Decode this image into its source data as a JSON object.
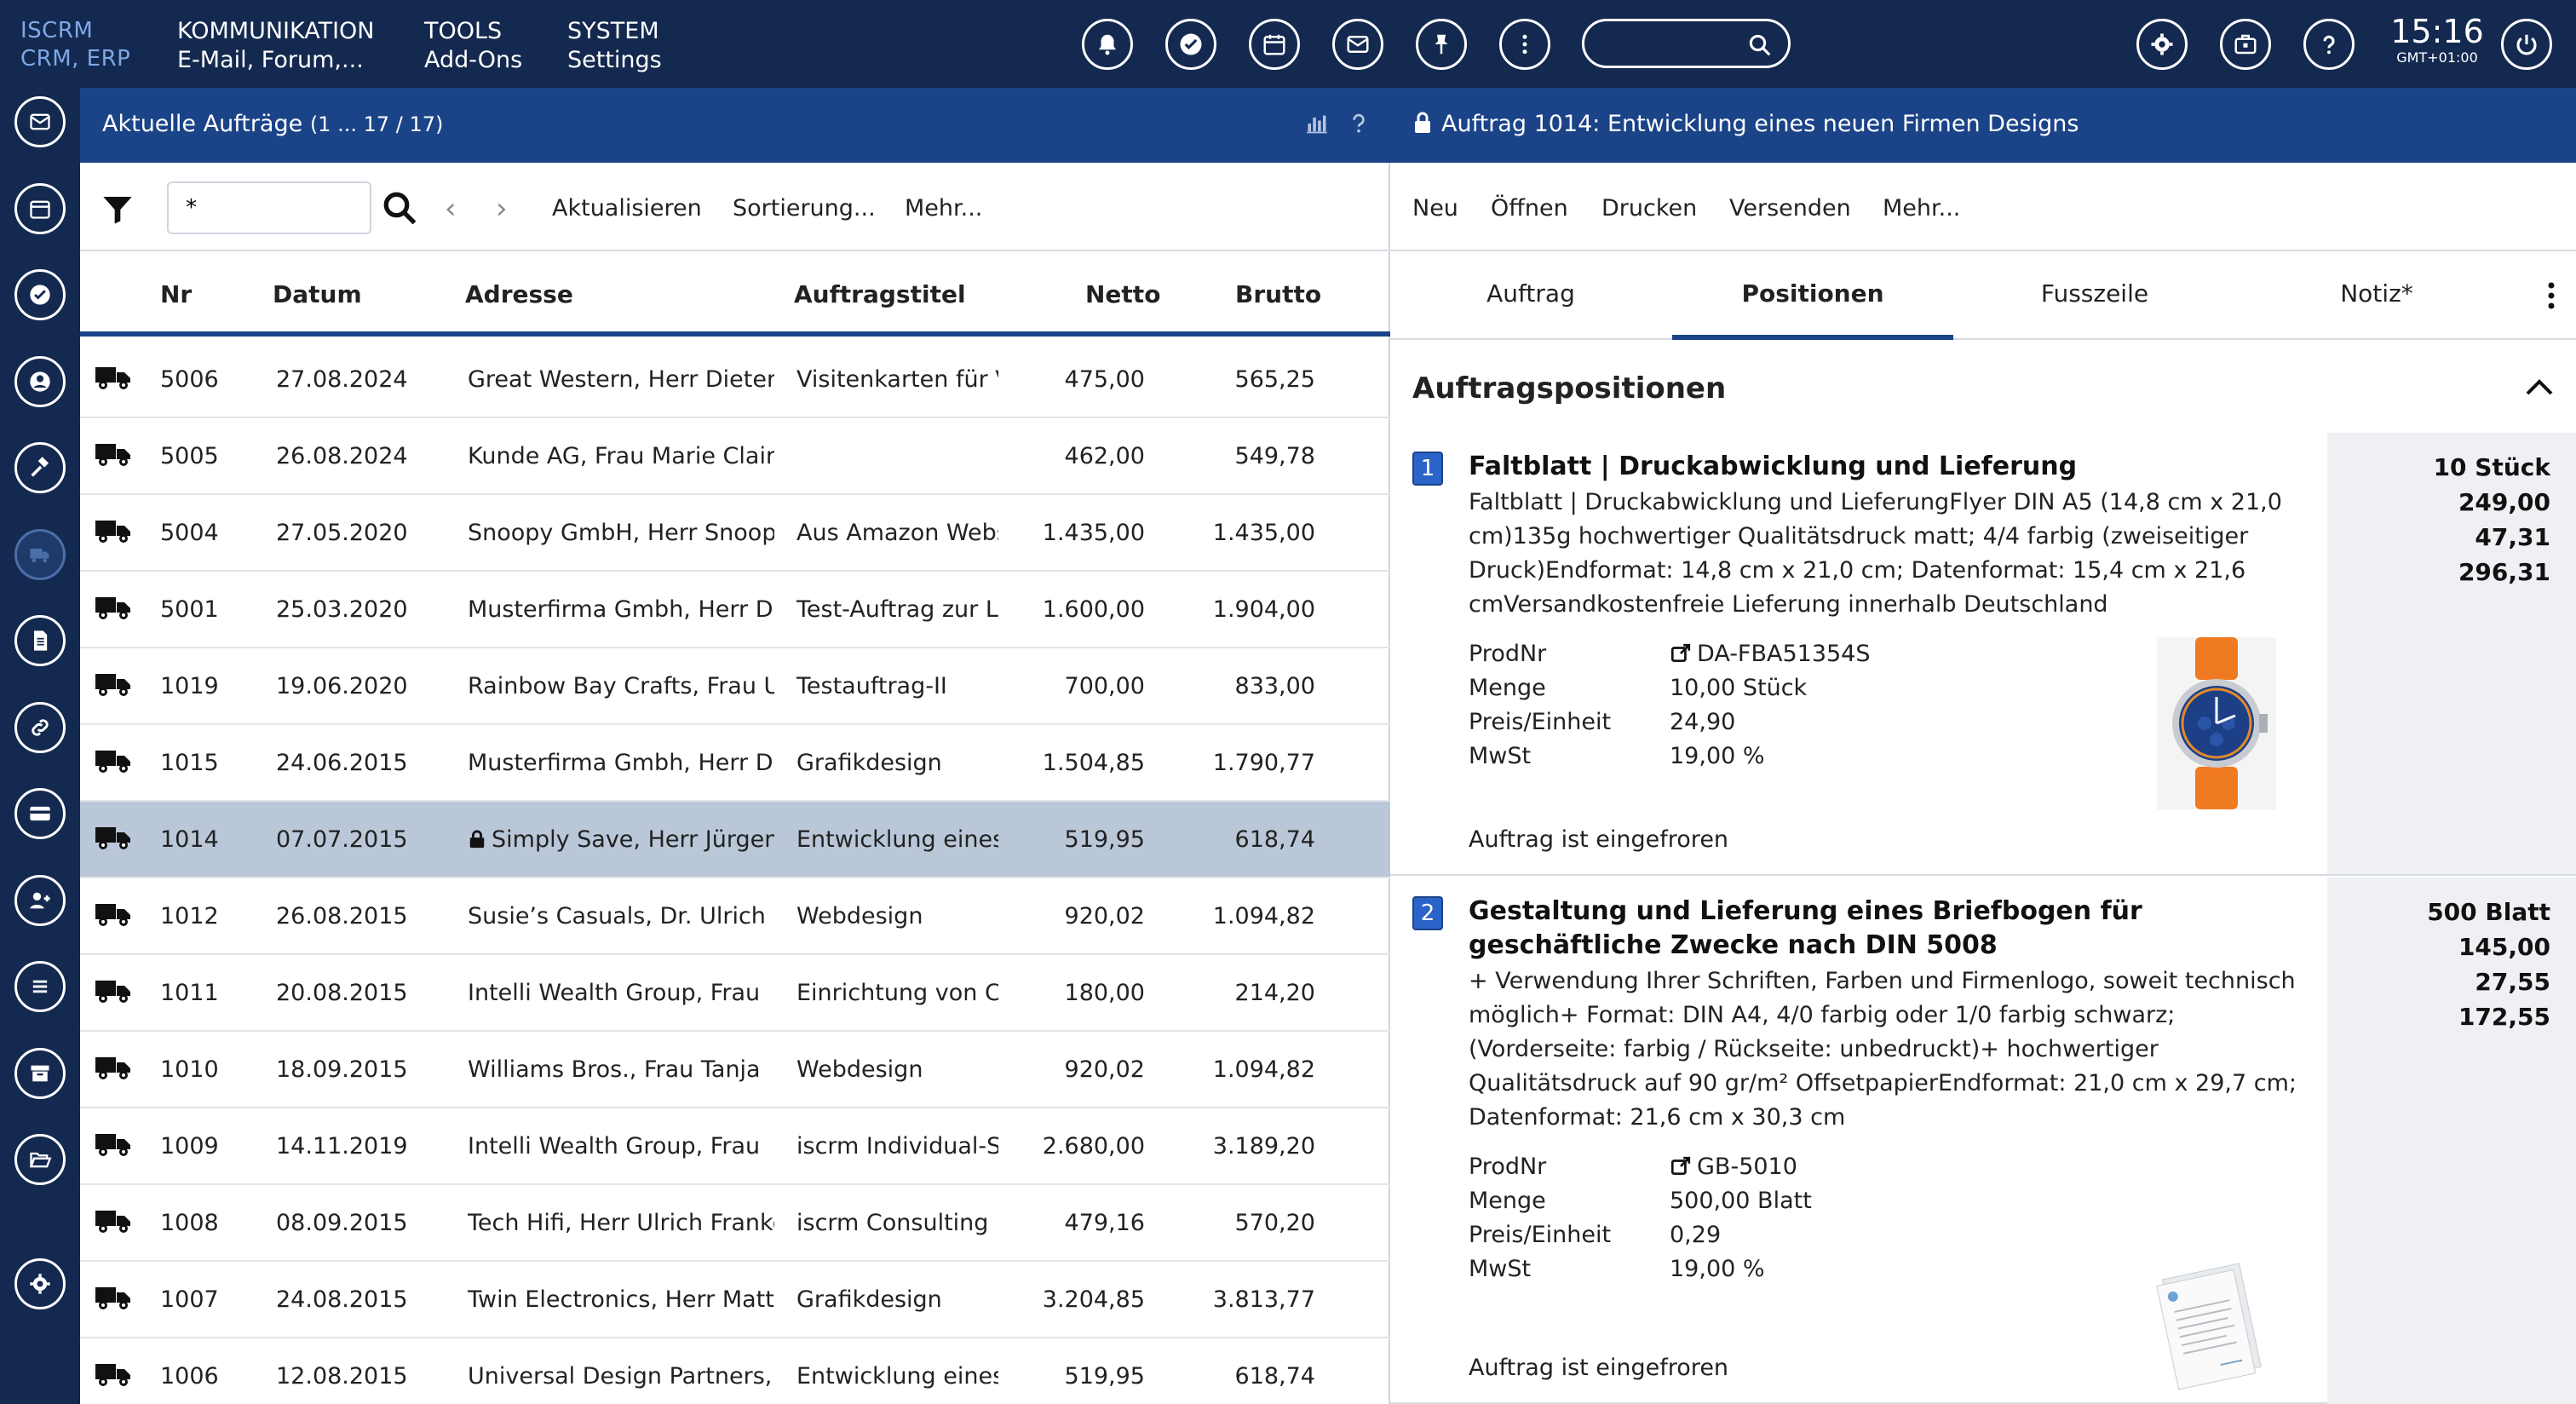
{
  "topbar": {
    "brand_line1": "ISCRM",
    "brand_line2": "CRM, ERP",
    "menus": [
      {
        "title": "KOMMUNIKATION",
        "subtitle": "E-Mail, Forum,..."
      },
      {
        "title": "TOOLS",
        "subtitle": "Add-Ons"
      },
      {
        "title": "SYSTEM",
        "subtitle": "Settings"
      }
    ],
    "icons": [
      "bell-icon",
      "check-circle-icon",
      "calendar-icon",
      "mail-icon",
      "pin-icon",
      "more-vertical-icon"
    ],
    "search_placeholder": "",
    "right_icons": [
      "gear-icon",
      "briefcase-icon",
      "help-icon"
    ],
    "time": "15:16",
    "timezone": "GMT+01:00",
    "power_icon": "power-icon"
  },
  "sidebar": {
    "items": [
      "mail-icon",
      "calendar-icon",
      "check-circle-icon",
      "user-icon",
      "hammer-icon",
      "truck-icon",
      "document-icon",
      "link-icon",
      "card-icon",
      "add-user-icon",
      "list-icon",
      "archive-icon",
      "folder-open-icon",
      "gear-icon"
    ],
    "active": "truck-icon"
  },
  "orders_panel": {
    "title": "Aktuelle Aufträge",
    "range": "(1 ... 17 / 17)",
    "filter_value": "*",
    "refresh_label": "Aktualisieren",
    "sort_label": "Sortierung...",
    "more_label": "Mehr...",
    "columns": {
      "nr": "Nr",
      "datum": "Datum",
      "adresse": "Adresse",
      "titel": "Auftragstitel",
      "netto": "Netto",
      "brutto": "Brutto"
    },
    "rows": [
      {
        "nr": "5006",
        "datum": "27.08.2024",
        "adresse": "Great Western, Herr Dieter",
        "titel": "Visitenkarten für Vorstand",
        "netto": "475,00",
        "brutto": "565,25",
        "locked": false,
        "selected": false
      },
      {
        "nr": "5005",
        "datum": "26.08.2024",
        "adresse": "Kunde AG, Frau Marie Claire",
        "titel": "",
        "netto": "462,00",
        "brutto": "549,78",
        "locked": false,
        "selected": false
      },
      {
        "nr": "5004",
        "datum": "27.05.2020",
        "adresse": "Snoopy GmbH, Herr Snoopy",
        "titel": "Aus Amazon Webshop",
        "netto": "1.435,00",
        "brutto": "1.435,00",
        "locked": false,
        "selected": false
      },
      {
        "nr": "5001",
        "datum": "25.03.2020",
        "adresse": "Musterfirma Gmbh, Herr Dieter",
        "titel": "Test-Auftrag zur Lieferung",
        "netto": "1.600,00",
        "brutto": "1.904,00",
        "locked": false,
        "selected": false
      },
      {
        "nr": "1019",
        "datum": "19.06.2020",
        "adresse": "Rainbow Bay Crafts, Frau Ulrike",
        "titel": "Testauftrag-II",
        "netto": "700,00",
        "brutto": "833,00",
        "locked": false,
        "selected": false
      },
      {
        "nr": "1015",
        "datum": "24.06.2015",
        "adresse": "Musterfirma Gmbh, Herr Dieter",
        "titel": "Grafikdesign",
        "netto": "1.504,85",
        "brutto": "1.790,77",
        "locked": false,
        "selected": false
      },
      {
        "nr": "1014",
        "datum": "07.07.2015",
        "adresse": "Simply Save, Herr Jürgen",
        "titel": "Entwicklung eines neuen Firmen Designs",
        "netto": "519,95",
        "brutto": "618,74",
        "locked": true,
        "selected": true
      },
      {
        "nr": "1012",
        "datum": "26.08.2015",
        "adresse": "Susie’s Casuals, Dr. Ulrich",
        "titel": "Webdesign",
        "netto": "920,02",
        "brutto": "1.094,82",
        "locked": false,
        "selected": false
      },
      {
        "nr": "1011",
        "datum": "20.08.2015",
        "adresse": "Intelli Wealth Group, Frau",
        "titel": "Einrichtung von CRM",
        "netto": "180,00",
        "brutto": "214,20",
        "locked": false,
        "selected": false
      },
      {
        "nr": "1010",
        "datum": "18.09.2015",
        "adresse": "Williams Bros., Frau Tanja",
        "titel": "Webdesign",
        "netto": "920,02",
        "brutto": "1.094,82",
        "locked": false,
        "selected": false
      },
      {
        "nr": "1009",
        "datum": "14.11.2019",
        "adresse": "Intelli Wealth Group, Frau",
        "titel": "iscrm Individual-Software",
        "netto": "2.680,00",
        "brutto": "3.189,20",
        "locked": false,
        "selected": false
      },
      {
        "nr": "1008",
        "datum": "08.09.2015",
        "adresse": "Tech Hifi, Herr Ulrich Franke",
        "titel": "iscrm Consulting",
        "netto": "479,16",
        "brutto": "570,20",
        "locked": false,
        "selected": false
      },
      {
        "nr": "1007",
        "datum": "24.08.2015",
        "adresse": "Twin Electronics, Herr Matthias",
        "titel": "Grafikdesign",
        "netto": "3.204,85",
        "brutto": "3.813,77",
        "locked": false,
        "selected": false
      },
      {
        "nr": "1006",
        "datum": "12.08.2015",
        "adresse": "Universal Design Partners,",
        "titel": "Entwicklung eines Logos",
        "netto": "519,95",
        "brutto": "618,74",
        "locked": false,
        "selected": false
      }
    ]
  },
  "detail_panel": {
    "title": "Auftrag 1014: Entwicklung eines neuen Firmen Designs",
    "toolbar": [
      "Neu",
      "Öffnen",
      "Drucken",
      "Versenden",
      "Mehr..."
    ],
    "tabs": [
      "Auftrag",
      "Positionen",
      "Fusszeile",
      "Notiz*"
    ],
    "active_tab": "Positionen",
    "section_title": "Auftragspositionen",
    "positions": [
      {
        "index": "1",
        "title": "Faltblatt | Druckabwicklung und Lieferung",
        "description": "Faltblatt | Druckabwicklung und LieferungFlyer DIN A5 (14,8 cm x 21,0 cm)135g hochwertiger Qualitätsdruck matt; 4/4 farbig (zweiseitiger Druck)Endformat: 14,8 cm x 21,0 cm; Datenformat: 15,4 cm x 21,6 cmVersandkostenfreie Lieferung innerhalb Deutschland",
        "prodnr_label": "ProdNr",
        "prodnr": "DA-FBA51354S",
        "menge_label": "Menge",
        "menge": "10,00 Stück",
        "preis_label": "Preis/Einheit",
        "preis": "24,90",
        "mwst_label": "MwSt",
        "mwst": "19,00 %",
        "status": "Auftrag ist eingefroren",
        "qty": "10 Stück",
        "netto": "249,00",
        "tax": "47,31",
        "brutto": "296,31",
        "thumb": "watch-image"
      },
      {
        "index": "2",
        "title": "Gestaltung und Lieferung eines Briefbogen für geschäftliche Zwecke nach DIN 5008",
        "description": "+ Verwendung Ihrer Schriften, Farben und Firmenlogo, soweit technisch möglich+ Format: DIN A4, 4/0 farbig oder 1/0 farbig schwarz; (Vorderseite: farbig / Rückseite: unbedruckt)+ hochwertiger Qualitätsdruck auf 90 gr/m² OffsetpapierEndformat: 21,0 cm x 29,7 cm; Datenformat: 21,6 cm x 30,3 cm",
        "prodnr_label": "ProdNr",
        "prodnr": "GB-5010",
        "menge_label": "Menge",
        "menge": "500,00 Blatt",
        "preis_label": "Preis/Einheit",
        "preis": "0,29",
        "mwst_label": "MwSt",
        "mwst": "19,00 %",
        "status": "Auftrag ist eingefroren",
        "qty": "500 Blatt",
        "netto": "145,00",
        "tax": "27,55",
        "brutto": "172,55",
        "thumb": "letterhead-image"
      }
    ]
  }
}
